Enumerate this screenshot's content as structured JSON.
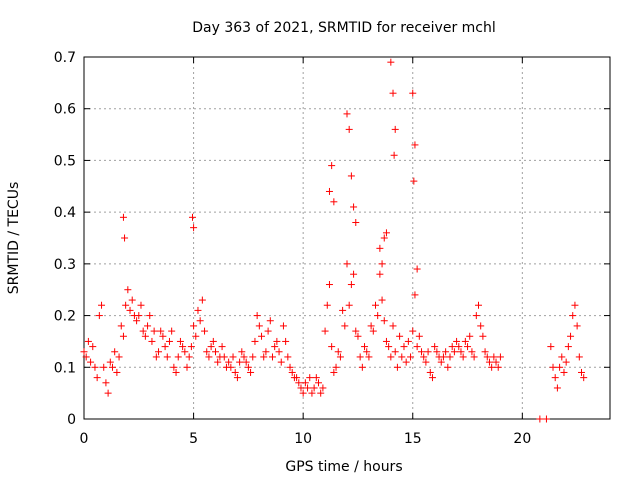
{
  "chart_data": {
    "type": "scatter",
    "title": "Day 363 of 2021, SRMTID for receiver mchl",
    "xlabel": "GPS time / hours",
    "ylabel": "SRMTID / TECUs",
    "xlim": [
      0,
      24
    ],
    "ylim": [
      0,
      0.7
    ],
    "xticks": [
      0,
      5,
      10,
      15,
      20
    ],
    "yticks": [
      0,
      0.1,
      0.2,
      0.3,
      0.4,
      0.5,
      0.6,
      0.7
    ],
    "xtick_labels": [
      "0",
      "5",
      "10",
      "15",
      "20"
    ],
    "ytick_labels": [
      "0",
      "0.1",
      "0.2",
      "0.3",
      "0.4",
      "0.5",
      "0.6",
      "0.7"
    ],
    "grid": true,
    "marker": "+",
    "color": "#ff0000",
    "series": [
      {
        "name": "SRMTID",
        "x": [
          0.0,
          0.1,
          0.2,
          0.3,
          0.4,
          0.5,
          0.6,
          0.7,
          0.8,
          0.9,
          1.0,
          1.1,
          1.2,
          1.3,
          1.4,
          1.5,
          1.6,
          1.7,
          1.8,
          1.9,
          2.0,
          2.1,
          2.2,
          2.3,
          2.4,
          2.5,
          2.6,
          2.7,
          2.8,
          2.9,
          3.0,
          3.1,
          3.2,
          3.3,
          3.4,
          3.5,
          3.6,
          3.7,
          3.8,
          3.9,
          4.0,
          4.1,
          4.2,
          4.3,
          4.4,
          4.5,
          4.6,
          4.7,
          4.8,
          4.9,
          5.0,
          5.1,
          5.2,
          5.3,
          5.4,
          5.5,
          5.6,
          5.7,
          5.8,
          5.9,
          6.0,
          6.1,
          6.2,
          6.3,
          6.4,
          6.5,
          6.6,
          6.7,
          6.8,
          6.9,
          7.0,
          7.1,
          7.2,
          7.3,
          7.4,
          7.5,
          7.6,
          7.7,
          7.8,
          7.9,
          8.0,
          8.1,
          8.2,
          8.3,
          8.4,
          8.5,
          8.6,
          8.7,
          8.8,
          8.9,
          9.0,
          9.1,
          9.2,
          9.3,
          9.4,
          9.5,
          9.6,
          9.7,
          9.8,
          9.9,
          10.0,
          10.1,
          10.2,
          10.3,
          10.4,
          10.5,
          10.6,
          10.7,
          10.8,
          10.9,
          11.0,
          11.1,
          11.2,
          11.3,
          11.4,
          11.5,
          11.6,
          11.7,
          11.8,
          11.9,
          12.0,
          12.1,
          12.2,
          12.3,
          12.4,
          12.5,
          12.6,
          12.7,
          12.8,
          12.9,
          13.0,
          13.1,
          13.2,
          13.3,
          13.4,
          13.5,
          13.6,
          13.7,
          13.8,
          13.9,
          14.0,
          14.1,
          14.2,
          14.3,
          14.4,
          14.5,
          14.6,
          14.7,
          14.8,
          14.9,
          15.0,
          15.1,
          15.2,
          15.3,
          15.4,
          15.5,
          15.6,
          15.7,
          15.8,
          15.9,
          16.0,
          16.1,
          16.2,
          16.3,
          16.4,
          16.5,
          16.6,
          16.7,
          16.8,
          16.9,
          17.0,
          17.1,
          17.2,
          17.3,
          17.4,
          17.5,
          17.6,
          17.7,
          17.8,
          17.9,
          18.0,
          18.1,
          18.2,
          18.3,
          18.4,
          18.5,
          18.6,
          18.7,
          18.8,
          18.9,
          19.0,
          20.8,
          21.1,
          21.3,
          21.4,
          21.5,
          21.6,
          21.7,
          21.8,
          21.9,
          22.0,
          22.1,
          22.2,
          22.3,
          22.4,
          22.5,
          22.6,
          22.7,
          22.8,
          1.8,
          1.85,
          4.95,
          5.0,
          11.2,
          11.3,
          11.4,
          12.0,
          12.1,
          12.2,
          12.3,
          12.4,
          13.8,
          14.0,
          14.1,
          14.2,
          14.15,
          15.0,
          15.1,
          15.05,
          15.2,
          13.5,
          13.6,
          13.7
        ],
        "values": [
          0.13,
          0.12,
          0.15,
          0.11,
          0.14,
          0.1,
          0.08,
          0.2,
          0.22,
          0.1,
          0.07,
          0.05,
          0.11,
          0.1,
          0.13,
          0.09,
          0.12,
          0.18,
          0.16,
          0.22,
          0.25,
          0.21,
          0.23,
          0.2,
          0.19,
          0.2,
          0.22,
          0.17,
          0.16,
          0.18,
          0.2,
          0.15,
          0.17,
          0.12,
          0.13,
          0.17,
          0.16,
          0.14,
          0.12,
          0.15,
          0.17,
          0.1,
          0.09,
          0.12,
          0.15,
          0.14,
          0.13,
          0.1,
          0.12,
          0.14,
          0.18,
          0.16,
          0.21,
          0.19,
          0.23,
          0.17,
          0.13,
          0.12,
          0.14,
          0.15,
          0.13,
          0.11,
          0.12,
          0.14,
          0.12,
          0.1,
          0.11,
          0.1,
          0.12,
          0.09,
          0.08,
          0.11,
          0.13,
          0.12,
          0.11,
          0.1,
          0.09,
          0.12,
          0.15,
          0.2,
          0.18,
          0.16,
          0.12,
          0.13,
          0.17,
          0.19,
          0.12,
          0.14,
          0.15,
          0.13,
          0.11,
          0.18,
          0.15,
          0.12,
          0.1,
          0.09,
          0.08,
          0.08,
          0.07,
          0.06,
          0.05,
          0.07,
          0.06,
          0.08,
          0.05,
          0.06,
          0.08,
          0.07,
          0.05,
          0.06,
          0.17,
          0.22,
          0.26,
          0.14,
          0.09,
          0.1,
          0.13,
          0.12,
          0.21,
          0.18,
          0.3,
          0.22,
          0.26,
          0.28,
          0.17,
          0.16,
          0.12,
          0.1,
          0.14,
          0.13,
          0.12,
          0.18,
          0.17,
          0.22,
          0.2,
          0.28,
          0.23,
          0.19,
          0.15,
          0.14,
          0.12,
          0.18,
          0.13,
          0.1,
          0.16,
          0.12,
          0.14,
          0.11,
          0.15,
          0.12,
          0.17,
          0.24,
          0.14,
          0.16,
          0.13,
          0.12,
          0.11,
          0.13,
          0.09,
          0.08,
          0.14,
          0.13,
          0.12,
          0.11,
          0.12,
          0.13,
          0.1,
          0.12,
          0.14,
          0.13,
          0.15,
          0.14,
          0.13,
          0.12,
          0.15,
          0.14,
          0.16,
          0.13,
          0.12,
          0.2,
          0.22,
          0.18,
          0.16,
          0.13,
          0.12,
          0.11,
          0.1,
          0.12,
          0.11,
          0.1,
          0.12,
          0.0,
          0.0,
          0.14,
          0.1,
          0.08,
          0.06,
          0.1,
          0.12,
          0.09,
          0.11,
          0.14,
          0.16,
          0.2,
          0.22,
          0.18,
          0.12,
          0.09,
          0.08,
          0.39,
          0.35,
          0.39,
          0.37,
          0.44,
          0.49,
          0.42,
          0.59,
          0.56,
          0.47,
          0.41,
          0.38,
          0.36,
          0.69,
          0.63,
          0.56,
          0.51,
          0.63,
          0.53,
          0.46,
          0.29,
          0.33,
          0.3,
          0.35
        ]
      }
    ]
  }
}
